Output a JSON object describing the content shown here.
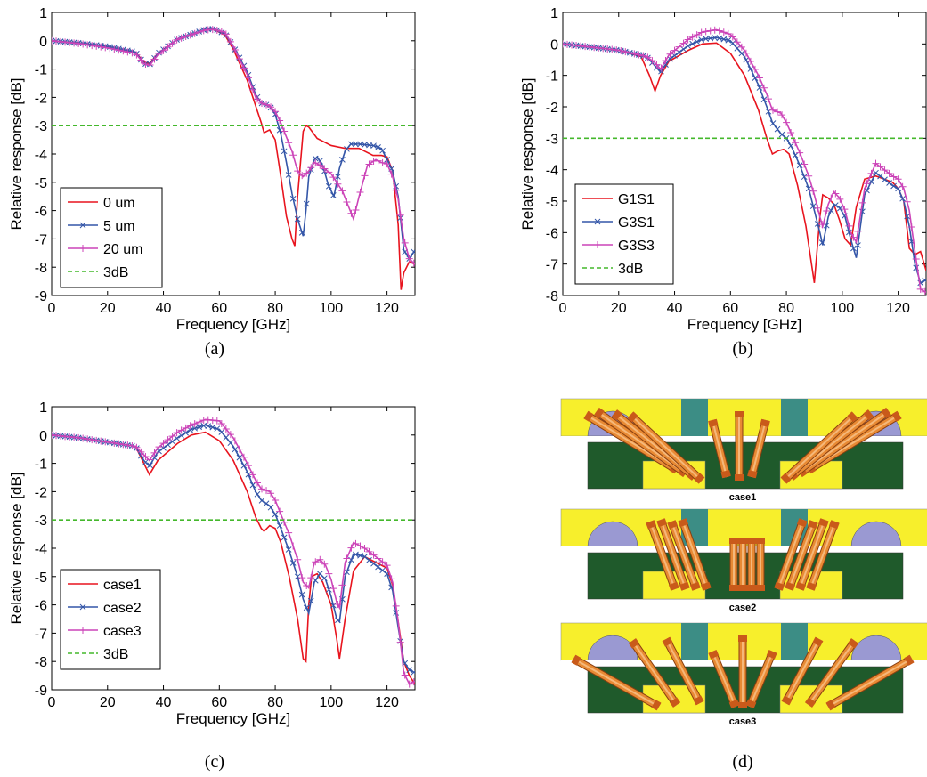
{
  "chart_data": [
    {
      "type": "line",
      "panel_caption": "(a)",
      "xlabel": "Frequency [GHz]",
      "ylabel": "Relative response [dB]",
      "xlim": [
        0,
        130
      ],
      "ylim": [
        -9,
        1
      ],
      "xticks": [
        "0",
        "20",
        "40",
        "60",
        "80",
        "100",
        "120"
      ],
      "yticks": [
        "1",
        "0",
        "-1",
        "-2",
        "-3",
        "-4",
        "-5",
        "-6",
        "-7",
        "-8",
        "-9"
      ],
      "legend_position": "lower-left",
      "series": [
        {
          "name": "0 um",
          "color": "#e8141e",
          "marker": "none",
          "x": [
            0,
            10,
            20,
            30,
            33,
            35,
            38,
            45,
            55,
            58,
            62,
            65,
            70,
            73,
            75,
            76,
            78,
            80,
            82,
            84,
            86,
            87,
            88,
            90,
            91,
            92,
            95,
            100,
            105,
            110,
            115,
            118,
            120,
            122,
            124,
            125,
            126,
            128,
            130
          ],
          "y": [
            0,
            -0.08,
            -0.2,
            -0.4,
            -0.75,
            -0.8,
            -0.45,
            0.05,
            0.38,
            0.4,
            0.2,
            -0.3,
            -1.4,
            -2.3,
            -2.9,
            -3.25,
            -3.15,
            -3.5,
            -4.8,
            -6.2,
            -7.0,
            -7.25,
            -5.5,
            -3.2,
            -3.0,
            -3.05,
            -3.45,
            -3.7,
            -3.8,
            -3.8,
            -4.05,
            -4.05,
            -4.1,
            -4.6,
            -6.5,
            -8.8,
            -8.2,
            -7.8,
            -7.9
          ]
        },
        {
          "name": "5 um",
          "color": "#3456a8",
          "marker": "x",
          "x": [
            0,
            10,
            20,
            30,
            33,
            35,
            38,
            45,
            55,
            58,
            62,
            65,
            70,
            73,
            75,
            78,
            80,
            82,
            84,
            86,
            88,
            90,
            91,
            92,
            94,
            95,
            97,
            99,
            101,
            103,
            105,
            107,
            110,
            115,
            118,
            120,
            122,
            124,
            126,
            128,
            130
          ],
          "y": [
            0,
            -0.08,
            -0.2,
            -0.4,
            -0.8,
            -0.85,
            -0.45,
            0.05,
            0.4,
            0.42,
            0.25,
            -0.2,
            -1.1,
            -1.9,
            -2.2,
            -2.3,
            -2.6,
            -3.3,
            -4.3,
            -5.4,
            -6.3,
            -6.9,
            -6.0,
            -4.8,
            -4.2,
            -4.1,
            -4.4,
            -5.1,
            -5.5,
            -4.5,
            -3.9,
            -3.65,
            -3.65,
            -3.7,
            -3.8,
            -4.2,
            -4.6,
            -5.5,
            -7.4,
            -7.7,
            -7.4
          ]
        },
        {
          "name": "20 um",
          "color": "#cc44b8",
          "marker": "+",
          "x": [
            0,
            10,
            20,
            30,
            33,
            35,
            38,
            45,
            55,
            58,
            62,
            65,
            70,
            73,
            75,
            78,
            80,
            82,
            84,
            86,
            88,
            90,
            92,
            94,
            96,
            100,
            104,
            106,
            108,
            110,
            113,
            116,
            118,
            120,
            122,
            124,
            126,
            128,
            130
          ],
          "y": [
            0,
            -0.1,
            -0.25,
            -0.45,
            -0.8,
            -0.88,
            -0.5,
            0.05,
            0.38,
            0.4,
            0.3,
            -0.2,
            -1.2,
            -2.0,
            -2.2,
            -2.3,
            -2.5,
            -2.9,
            -3.4,
            -3.9,
            -4.6,
            -4.8,
            -4.6,
            -4.3,
            -4.4,
            -4.7,
            -5.3,
            -5.8,
            -6.3,
            -5.5,
            -4.4,
            -4.2,
            -4.3,
            -4.35,
            -4.8,
            -5.6,
            -7.0,
            -7.7,
            -7.9
          ]
        },
        {
          "name": "3dB",
          "color": "#44b82c",
          "dashed": true,
          "x": [
            0,
            130
          ],
          "y": [
            -3,
            -3
          ]
        }
      ]
    },
    {
      "type": "line",
      "panel_caption": "(b)",
      "xlabel": "Frequency [GHz]",
      "ylabel": "Relative response [dB]",
      "xlim": [
        0,
        130
      ],
      "ylim": [
        -8,
        1
      ],
      "xticks": [
        "0",
        "20",
        "40",
        "60",
        "80",
        "100",
        "120"
      ],
      "yticks": [
        "1",
        "0",
        "-1",
        "-2",
        "-3",
        "-4",
        "-5",
        "-6",
        "-7",
        "-8"
      ],
      "legend_position": "lower-left",
      "series": [
        {
          "name": "G1S1",
          "color": "#e8141e",
          "marker": "none",
          "x": [
            0,
            10,
            20,
            28,
            31,
            33,
            35,
            38,
            45,
            50,
            55,
            60,
            65,
            70,
            73,
            75,
            77,
            79,
            81,
            84,
            87,
            90,
            92,
            93,
            95,
            97,
            99,
            101,
            103,
            105,
            108,
            112,
            115,
            118,
            120,
            122,
            124,
            126,
            128,
            130
          ],
          "y": [
            0,
            -0.1,
            -0.2,
            -0.4,
            -1.0,
            -1.5,
            -1.0,
            -0.55,
            -0.2,
            0.0,
            0.03,
            -0.3,
            -1.0,
            -2.1,
            -3.0,
            -3.5,
            -3.4,
            -3.35,
            -3.5,
            -4.5,
            -5.8,
            -7.6,
            -5.5,
            -4.8,
            -4.9,
            -5.1,
            -5.6,
            -6.2,
            -6.4,
            -5.2,
            -4.3,
            -4.2,
            -4.3,
            -4.4,
            -4.6,
            -5.0,
            -6.5,
            -6.7,
            -6.6,
            -7.2
          ]
        },
        {
          "name": "G3S1",
          "color": "#3456a8",
          "marker": "x",
          "x": [
            0,
            10,
            20,
            30,
            33,
            35,
            38,
            45,
            50,
            55,
            60,
            65,
            70,
            73,
            75,
            78,
            80,
            82,
            85,
            88,
            90,
            92,
            93,
            95,
            97,
            99,
            101,
            103,
            105,
            108,
            112,
            115,
            118,
            120,
            122,
            124,
            126,
            128,
            130
          ],
          "y": [
            0,
            -0.1,
            -0.2,
            -0.4,
            -0.7,
            -0.9,
            -0.5,
            -0.05,
            0.15,
            0.2,
            0.1,
            -0.4,
            -1.3,
            -2.0,
            -2.5,
            -2.85,
            -3.0,
            -3.3,
            -3.9,
            -4.6,
            -5.3,
            -6.0,
            -6.4,
            -5.5,
            -5.1,
            -5.2,
            -5.5,
            -6.2,
            -6.8,
            -4.8,
            -4.1,
            -4.3,
            -4.5,
            -4.6,
            -5.0,
            -5.8,
            -7.0,
            -7.6,
            -7.5
          ]
        },
        {
          "name": "G3S3",
          "color": "#cc44b8",
          "marker": "+",
          "x": [
            0,
            10,
            20,
            30,
            33,
            35,
            38,
            45,
            50,
            55,
            60,
            65,
            70,
            73,
            75,
            78,
            80,
            82,
            85,
            88,
            90,
            92,
            93,
            95,
            97,
            99,
            101,
            103,
            105,
            108,
            112,
            115,
            118,
            120,
            122,
            124,
            126,
            128,
            130
          ],
          "y": [
            0,
            -0.1,
            -0.2,
            -0.4,
            -0.6,
            -0.8,
            -0.35,
            0.15,
            0.38,
            0.45,
            0.3,
            -0.2,
            -1.0,
            -1.6,
            -2.1,
            -2.2,
            -2.5,
            -2.9,
            -3.5,
            -4.2,
            -4.8,
            -5.5,
            -5.8,
            -5.1,
            -4.7,
            -4.9,
            -5.3,
            -6.0,
            -6.3,
            -4.6,
            -3.8,
            -4.0,
            -4.2,
            -4.3,
            -4.6,
            -5.3,
            -6.6,
            -7.8,
            -7.9
          ]
        },
        {
          "name": "3dB",
          "color": "#44b82c",
          "dashed": true,
          "x": [
            0,
            130
          ],
          "y": [
            -3,
            -3
          ]
        }
      ]
    },
    {
      "type": "line",
      "panel_caption": "(c)",
      "xlabel": "Frequency [GHz]",
      "ylabel": "Relative response [dB]",
      "xlim": [
        0,
        130
      ],
      "ylim": [
        -9,
        1
      ],
      "xticks": [
        "0",
        "20",
        "40",
        "60",
        "80",
        "100",
        "120"
      ],
      "yticks": [
        "1",
        "0",
        "-1",
        "-2",
        "-3",
        "-4",
        "-5",
        "-6",
        "-7",
        "-8",
        "-9"
      ],
      "legend_position": "lower-left",
      "series": [
        {
          "name": "case1",
          "color": "#e8141e",
          "marker": "none",
          "x": [
            0,
            10,
            20,
            30,
            33,
            35,
            38,
            45,
            50,
            55,
            60,
            65,
            70,
            73,
            75,
            76,
            78,
            80,
            82,
            85,
            88,
            90,
            91,
            92,
            93,
            95,
            97,
            100,
            102,
            103,
            105,
            108,
            112,
            116,
            120,
            122,
            124,
            126,
            128,
            130
          ],
          "y": [
            0,
            -0.1,
            -0.25,
            -0.4,
            -1.0,
            -1.4,
            -0.9,
            -0.3,
            0.0,
            0.1,
            -0.2,
            -0.9,
            -2.0,
            -2.9,
            -3.3,
            -3.4,
            -3.2,
            -3.3,
            -3.8,
            -5.0,
            -6.5,
            -7.9,
            -8.0,
            -6.0,
            -5.0,
            -4.9,
            -5.2,
            -6.0,
            -7.2,
            -7.9,
            -6.5,
            -4.8,
            -4.3,
            -4.5,
            -4.7,
            -5.3,
            -6.6,
            -8.0,
            -8.5,
            -8.8
          ]
        },
        {
          "name": "case2",
          "color": "#3456a8",
          "marker": "x",
          "x": [
            0,
            10,
            20,
            30,
            33,
            35,
            38,
            45,
            50,
            55,
            60,
            65,
            70,
            73,
            75,
            78,
            80,
            82,
            85,
            88,
            90,
            92,
            94,
            96,
            98,
            100,
            102,
            103,
            105,
            108,
            112,
            116,
            120,
            122,
            124,
            126,
            128,
            130
          ],
          "y": [
            0,
            -0.1,
            -0.25,
            -0.4,
            -0.9,
            -1.1,
            -0.6,
            -0.1,
            0.2,
            0.35,
            0.2,
            -0.4,
            -1.3,
            -2.0,
            -2.3,
            -2.5,
            -2.8,
            -3.3,
            -4.1,
            -5.0,
            -5.8,
            -6.3,
            -5.2,
            -4.9,
            -5.1,
            -5.7,
            -6.5,
            -6.6,
            -5.0,
            -4.2,
            -4.3,
            -4.6,
            -4.9,
            -5.5,
            -6.8,
            -8.0,
            -8.3,
            -8.4
          ]
        },
        {
          "name": "case3",
          "color": "#cc44b8",
          "marker": "+",
          "x": [
            0,
            10,
            20,
            30,
            33,
            35,
            38,
            45,
            50,
            55,
            60,
            65,
            70,
            73,
            75,
            78,
            80,
            82,
            85,
            88,
            90,
            92,
            94,
            96,
            98,
            100,
            102,
            103,
            105,
            108,
            112,
            116,
            120,
            122,
            124,
            126,
            128,
            130
          ],
          "y": [
            0,
            -0.1,
            -0.25,
            -0.4,
            -0.7,
            -0.9,
            -0.45,
            0.1,
            0.35,
            0.55,
            0.5,
            -0.1,
            -1.0,
            -1.6,
            -1.9,
            -2.0,
            -2.3,
            -2.8,
            -3.5,
            -4.4,
            -5.2,
            -5.4,
            -4.5,
            -4.4,
            -4.6,
            -5.1,
            -5.9,
            -6.1,
            -4.5,
            -3.8,
            -4.0,
            -4.3,
            -4.6,
            -5.2,
            -6.6,
            -8.4,
            -8.8,
            -8.7
          ]
        },
        {
          "name": "3dB",
          "color": "#44b82c",
          "dashed": true,
          "x": [
            0,
            130
          ],
          "y": [
            -3,
            -3
          ]
        }
      ]
    }
  ],
  "figure": {
    "panel_d": {
      "caption": "(d)",
      "case_labels": [
        "case1",
        "case2",
        "case3"
      ],
      "colors": {
        "package": "#f7ef2c",
        "substrate": "#1f5a2b",
        "pad": "#3c8d85",
        "bump": "#9a99d2",
        "wire": "#e88a34",
        "wire_dark": "#8a3f10"
      }
    }
  }
}
